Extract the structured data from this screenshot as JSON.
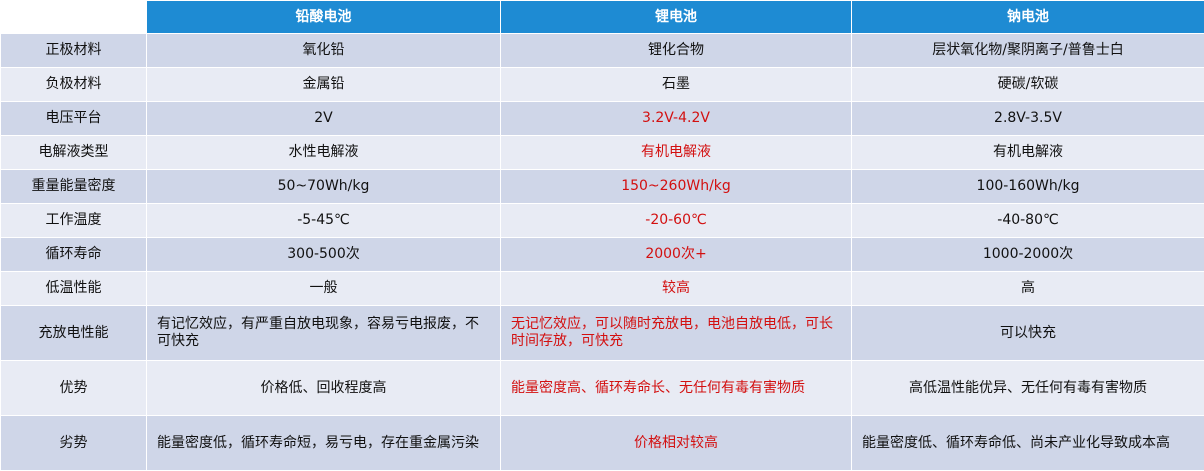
{
  "headers": [
    "",
    "铅酸电池",
    "锂电池",
    "钠电池"
  ],
  "rows": [
    {
      "label": "正极材料",
      "values": [
        "氧化铅",
        "锂化合物",
        "层状氧化物/聚阴离子/普鲁士白"
      ]
    },
    {
      "label": "负极材料",
      "values": [
        "金属铅",
        "石墨",
        "硬碳/软碳"
      ]
    },
    {
      "label": "电压平台",
      "values": [
        "2V",
        "3.2V-4.2V",
        "2.8V-3.5V"
      ]
    },
    {
      "label": "电解液类型",
      "values": [
        "水性电解液",
        "有机电解液",
        "有机电解液"
      ]
    },
    {
      "label": "重量能量密度",
      "values": [
        "50~70Wh/kg",
        "150~260Wh/kg",
        "100-160Wh/kg"
      ]
    },
    {
      "label": "工作温度",
      "values": [
        "-5-45℃",
        "-20-60℃",
        "-40-80℃"
      ]
    },
    {
      "label": "循环寿命",
      "values": [
        "300-500次",
        "2000次+",
        "1000-2000次"
      ]
    },
    {
      "label": "低温性能",
      "values": [
        "一般",
        "较高",
        "高"
      ]
    },
    {
      "label": "充放电性能",
      "values": [
        "有记忆效应，有严重自放电现象，容易亏电报废，不可快充",
        "无记忆效应，可以随时充放电，电池自放电低，可长时间存放，可快充",
        "可以快充"
      ]
    },
    {
      "label": "优势",
      "values": [
        "价格低、回收程度高",
        "能量密度高、循环寿命长、无任何有毒有害物质",
        "高低温性能优异、无任何有毒有害物质"
      ]
    },
    {
      "label": "劣势",
      "values": [
        "能量密度低，循环寿命短，易亏电，存在重金属污染",
        "价格相对较高",
        "能量密度低、循环寿命低、尚未产业化导致成本高"
      ]
    }
  ],
  "colors": {
    "header_bg": "#1e8bd3",
    "header_text": "#ffffff",
    "row_dark": "#cfd6e8",
    "row_light": "#e8ebf4",
    "highlight_text": "#d31010"
  }
}
